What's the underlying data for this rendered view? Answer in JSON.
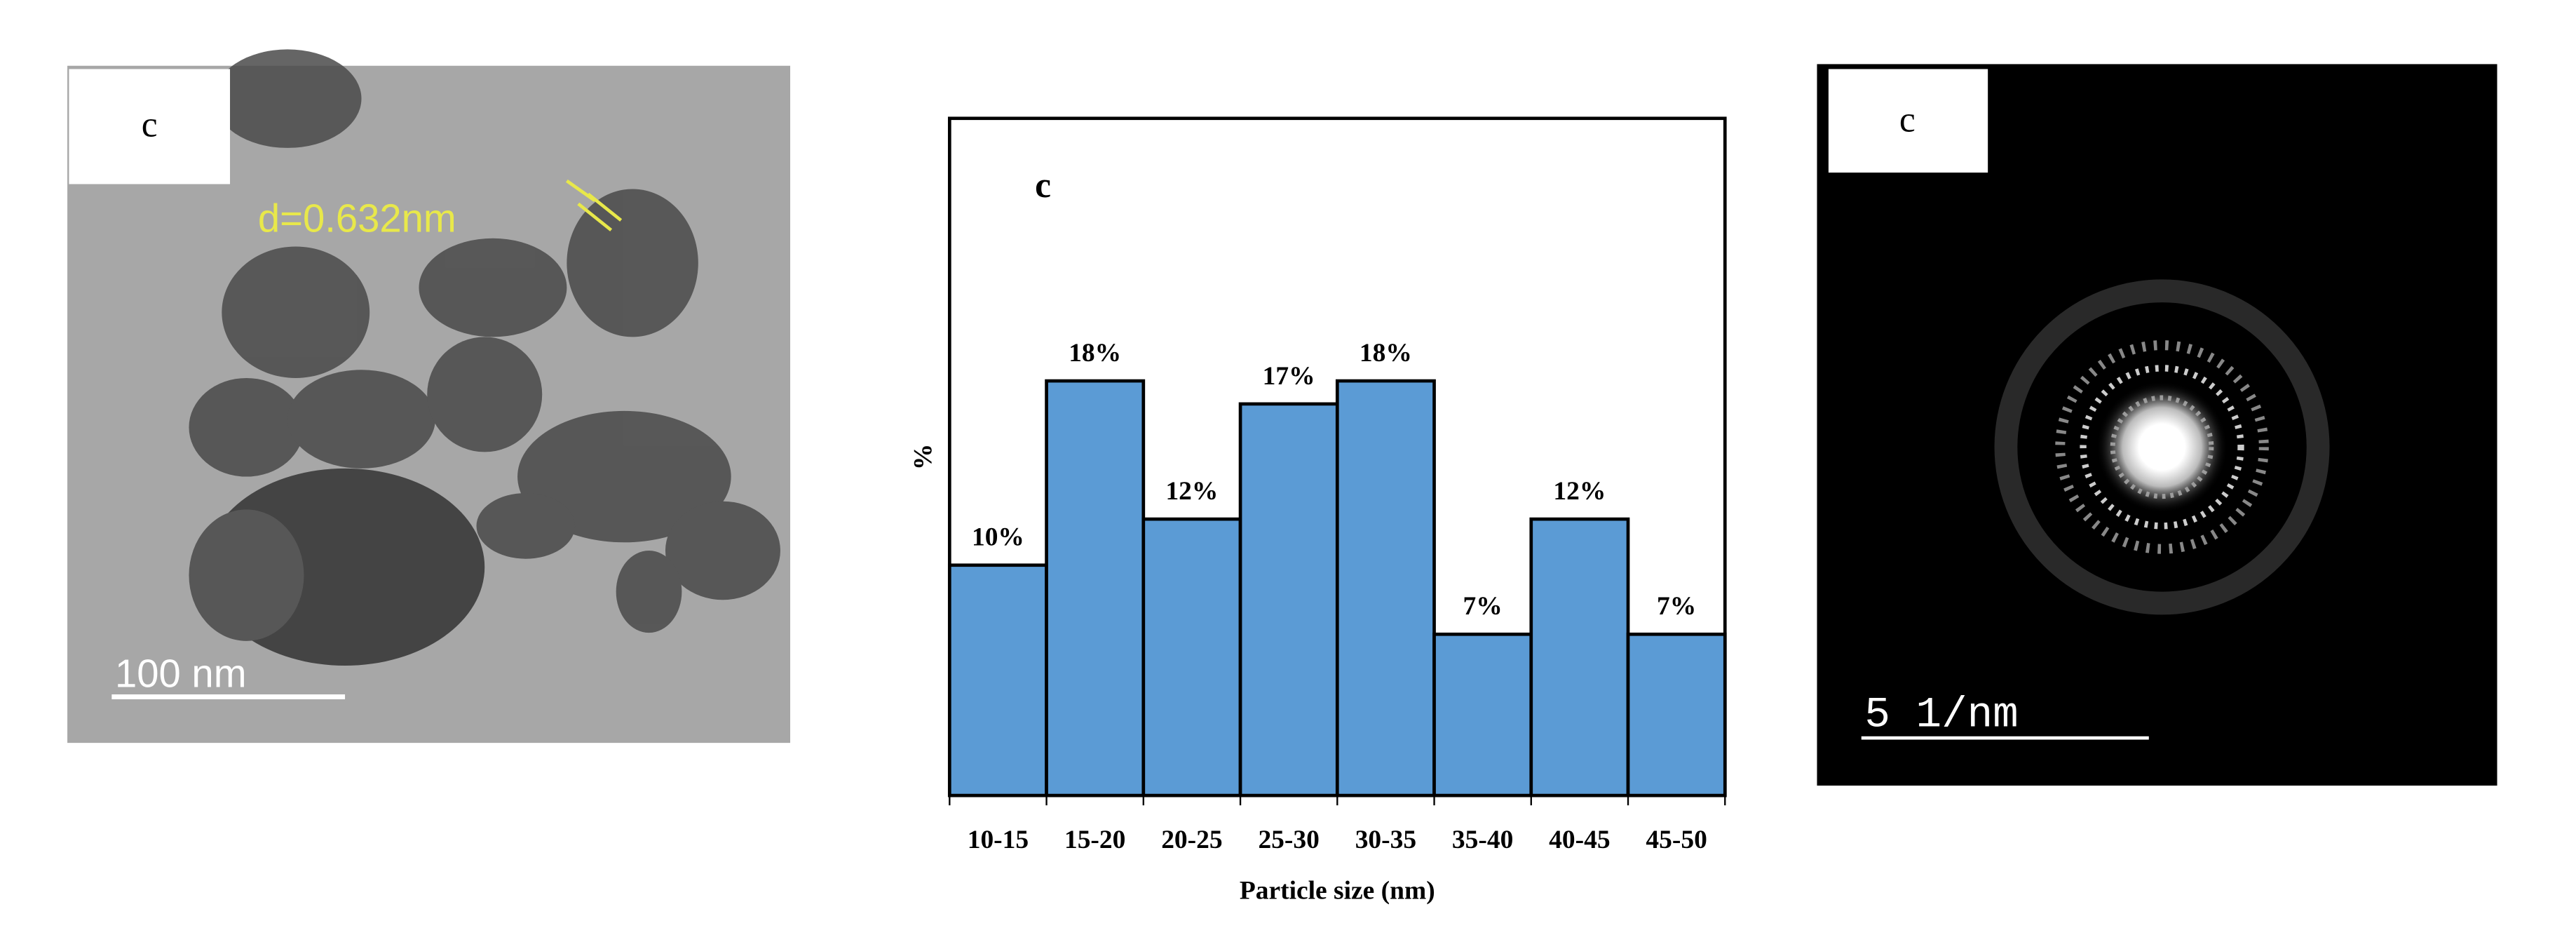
{
  "panels": {
    "tem": {
      "label": "c",
      "lattice": "d=0.632nm",
      "scale": "100 nm"
    },
    "saed": {
      "label": "c",
      "scale": "5 1/nm"
    }
  },
  "chart_data": {
    "type": "bar",
    "panel_label": "c",
    "x_label": "Particle size (nm)",
    "y_label": "%",
    "categories": [
      "10-15",
      "15-20",
      "20-25",
      "25-30",
      "30-35",
      "35-40",
      "40-45",
      "45-50"
    ],
    "values": [
      10,
      18,
      12,
      17,
      18,
      7,
      12,
      7
    ],
    "value_labels": [
      "10%",
      "18%",
      "12%",
      "17%",
      "18%",
      "7%",
      "12%",
      "7%"
    ],
    "color": "#5b9bd5",
    "ylim": [
      0,
      29.4
    ]
  }
}
